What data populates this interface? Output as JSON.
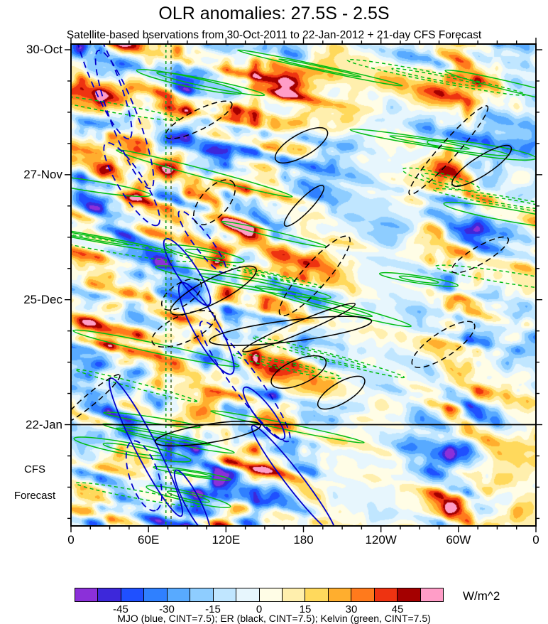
{
  "chart_data": {
    "type": "heatmap",
    "title": "OLR anomalies: 27.5S - 2.5S",
    "subtitle": "Satellite-based bservations from 30-Oct-2011 to 22-Jan-2012 + 21-day CFS Forecast",
    "x_axis": {
      "range_deg": [
        0,
        360
      ],
      "major_tick_deg": 60,
      "minor_tick_deg": 15,
      "ticks": [
        {
          "label": "0",
          "lon": 0
        },
        {
          "label": "60E",
          "lon": 60
        },
        {
          "label": "120E",
          "lon": 120
        },
        {
          "label": "180",
          "lon": 180
        },
        {
          "label": "120W",
          "lon": 240
        },
        {
          "label": "60W",
          "lon": 300
        },
        {
          "label": "0",
          "lon": 360
        }
      ]
    },
    "y_axis": {
      "start": "30-Oct-2011",
      "obs_end": "22-Jan-2012",
      "forecast_days": 21,
      "major_tick_days": 28,
      "minor_tick_days": 7,
      "ticks": [
        {
          "label": "30-Oct",
          "day": 0
        },
        {
          "label": "27-Nov",
          "day": 28
        },
        {
          "label": "25-Dec",
          "day": 56
        },
        {
          "label": "22-Jan",
          "day": 84
        }
      ],
      "forecast_label_lines": [
        "CFS",
        "Forecast"
      ]
    },
    "colorbar": {
      "units_label": "W/m^2",
      "interval": 7.5,
      "tick_labels": [
        "-45",
        "-30",
        "-15",
        "0",
        "15",
        "30",
        "45"
      ],
      "colors": [
        "#8b30d9",
        "#3d28da",
        "#1f50ff",
        "#2f80ff",
        "#58aaff",
        "#8ecdff",
        "#c0e6ff",
        "#e7f6fd",
        "#fffde6",
        "#ffefad",
        "#ffd95c",
        "#ffae2e",
        "#ff7a1c",
        "#ee3311",
        "#a40000",
        "#ff9dc7"
      ]
    },
    "overlays": [
      {
        "name": "MJO",
        "color": "#0000cc",
        "cint": 7.5
      },
      {
        "name": "ER",
        "color": "#000000",
        "cint": 7.5
      },
      {
        "name": "Kelvin",
        "color": "#00bd12",
        "cint": 7.5
      }
    ],
    "reference_lines": {
      "forecast_divider": {
        "orientation": "horizontal",
        "day": 84,
        "color": "#000000"
      },
      "vertical_dashed": [
        {
          "lon": 73.5,
          "color": "#0aa020"
        },
        {
          "lon": 77.5,
          "color": "#4f6e2f"
        }
      ]
    },
    "legend_caption": "MJO (blue, CINT=7.5); ER (black, CINT=7.5); Kelvin (green, CINT=7.5)",
    "render": {
      "seed": 7,
      "kelvin_count": 34,
      "mjo_count": 12,
      "er_count": 16,
      "value_range": [
        -60,
        60
      ]
    }
  }
}
